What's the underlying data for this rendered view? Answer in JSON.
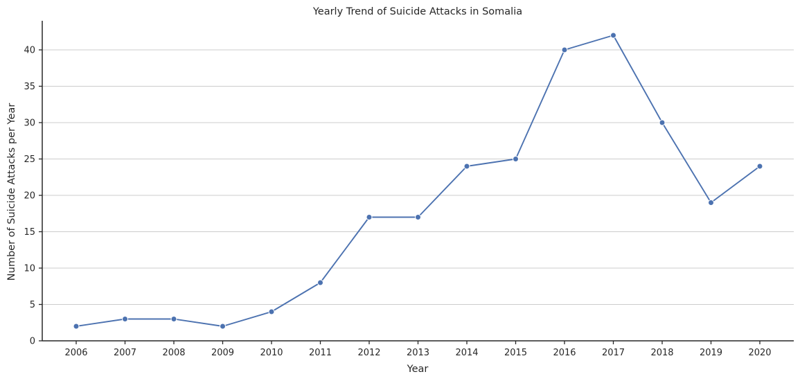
{
  "chart_data": {
    "type": "line",
    "title": "Yearly Trend of Suicide Attacks in Somalia",
    "xlabel": "Year",
    "ylabel": "Number of Suicide Attacks per Year",
    "categories": [
      "2006",
      "2007",
      "2008",
      "2009",
      "2010",
      "2011",
      "2012",
      "2013",
      "2014",
      "2015",
      "2016",
      "2017",
      "2018",
      "2019",
      "2020"
    ],
    "series": [
      {
        "values": [
          2,
          3,
          3,
          2,
          4,
          8,
          17,
          17,
          24,
          25,
          40,
          42,
          30,
          19,
          24
        ],
        "color": "#4c72b0",
        "marker": "circle"
      }
    ],
    "yticks": [
      "0",
      "5",
      "10",
      "15",
      "20",
      "25",
      "30",
      "35",
      "40"
    ],
    "ylim": [
      0,
      44
    ],
    "grid": "horizontal",
    "legend": "none"
  }
}
